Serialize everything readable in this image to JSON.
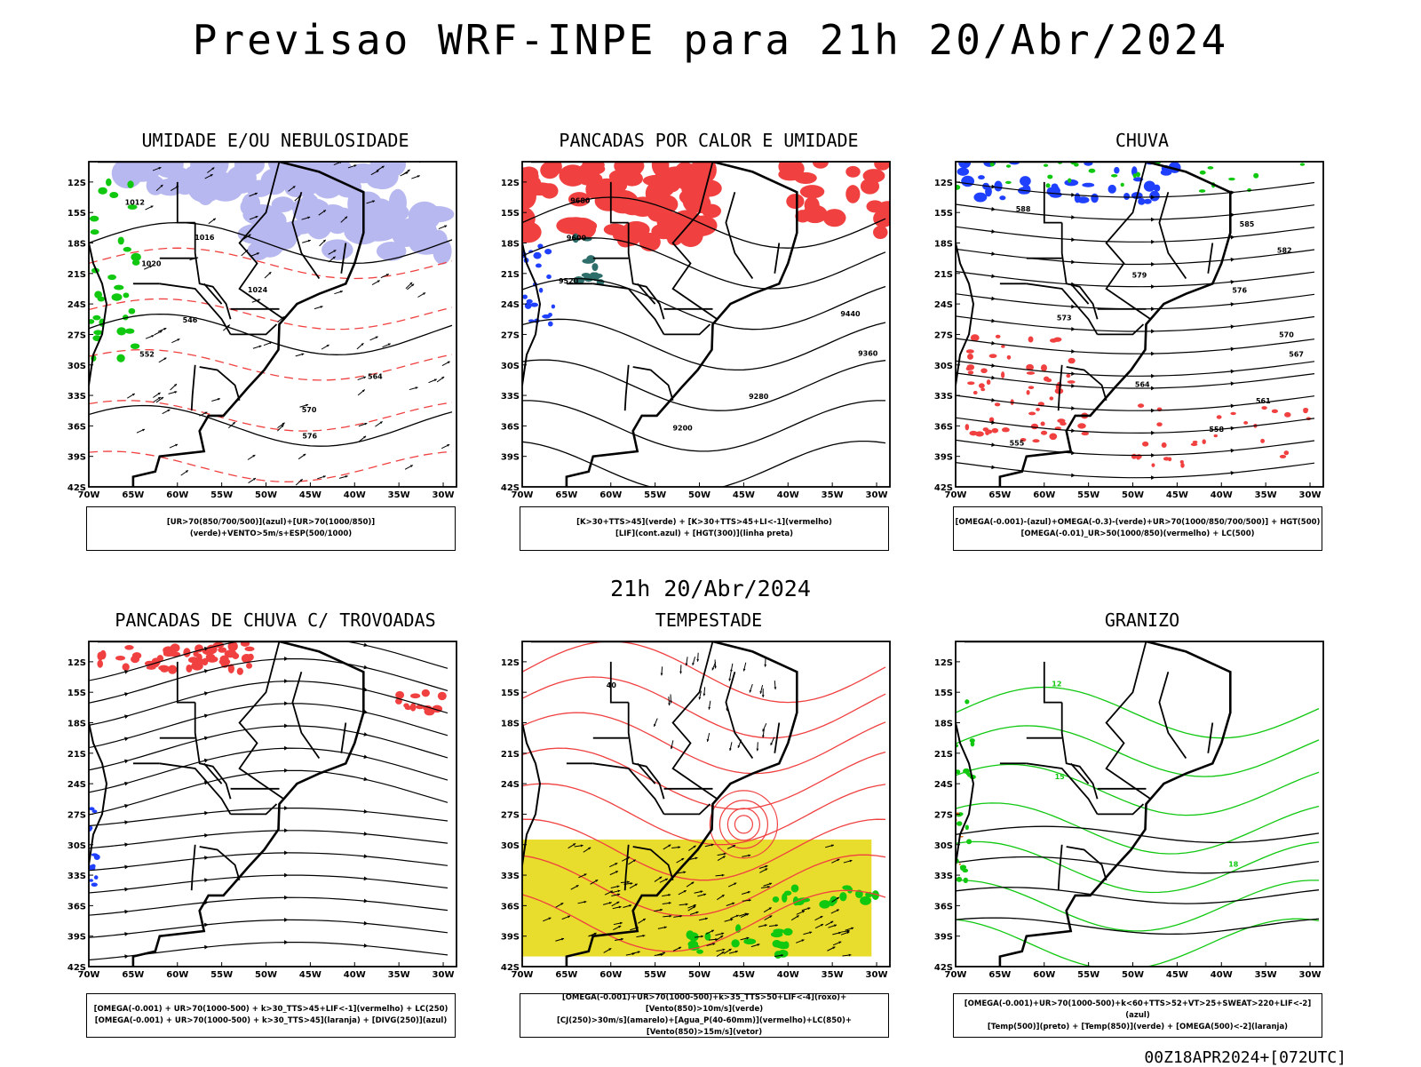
{
  "main_title": "Previsao WRF-INPE  para 21h 20/Abr/2024",
  "row_date": "21h 20/Abr/2024",
  "footer": "00Z18APR2024+[072UTC]",
  "colors": {
    "coast": "#000000",
    "red_fill": "#f04040",
    "green": "#10c810",
    "blue": "#2040ff",
    "lavender": "#b8b8f0",
    "yellow": "#e8dc2c",
    "teal": "#2e6e6a",
    "orange": "#e07010"
  },
  "chart_data": [
    {
      "type": "heatmap",
      "title": "UMIDADE E/OU NEBULOSIDADE",
      "lon_ticks": [
        "70W",
        "65W",
        "60W",
        "55W",
        "50W",
        "45W",
        "40W",
        "35W",
        "30W"
      ],
      "lat_ticks": [
        "12S",
        "15S",
        "18S",
        "21S",
        "24S",
        "27S",
        "30S",
        "33S",
        "36S",
        "39S",
        "42S"
      ],
      "xlim": [
        -70,
        -28.5
      ],
      "ylim": [
        -42,
        -10
      ],
      "contour_labels": [
        "1012",
        "1016",
        "1020",
        "1024",
        "546",
        "552",
        "564",
        "570",
        "576"
      ],
      "legend": [
        "[UR>70(850/700/500)](azul)+[UR>70(1000/850)](verde)+VENTO>5m/s+ESP(500/1000)"
      ]
    },
    {
      "type": "heatmap",
      "title": "PANCADAS POR CALOR E UMIDADE",
      "lon_ticks": [
        "70W",
        "65W",
        "60W",
        "55W",
        "50W",
        "45W",
        "40W",
        "35W",
        "30W"
      ],
      "lat_ticks": [
        "12S",
        "15S",
        "18S",
        "21S",
        "24S",
        "27S",
        "30S",
        "33S",
        "36S",
        "39S",
        "42S"
      ],
      "xlim": [
        -70,
        -28.5
      ],
      "ylim": [
        -42,
        -10
      ],
      "contour_labels": [
        "9680",
        "9600",
        "9520",
        "9440",
        "9360",
        "9280",
        "9200"
      ],
      "legend": [
        "[K>30+TTS>45](verde)  +  [K>30+TTS>45+LI<-1](vermelho)",
        "[LIF](cont.azul)  +  [HGT(300)](linha preta)"
      ]
    },
    {
      "type": "heatmap",
      "title": "CHUVA",
      "lon_ticks": [
        "70W",
        "65W",
        "60W",
        "55W",
        "50W",
        "45W",
        "40W",
        "35W",
        "30W"
      ],
      "lat_ticks": [
        "12S",
        "15S",
        "18S",
        "21S",
        "24S",
        "27S",
        "30S",
        "33S",
        "36S",
        "39S",
        "42S"
      ],
      "xlim": [
        -70,
        -28.5
      ],
      "ylim": [
        -42,
        -10
      ],
      "contour_labels": [
        "588",
        "585",
        "582",
        "579",
        "576",
        "573",
        "570",
        "567",
        "564",
        "561",
        "558",
        "555"
      ],
      "legend": [
        "[OMEGA(-0.001)-(azul)+OMEGA(-0.3)-(verde)+UR>70(1000/850/700/500)]  +  HGT(500)",
        "[OMEGA(-0.01)_UR>50(1000/850)(vermelho)  +  LC(500)"
      ]
    },
    {
      "type": "heatmap",
      "title": "PANCADAS DE CHUVA C/ TROVOADAS",
      "lon_ticks": [
        "70W",
        "65W",
        "60W",
        "55W",
        "50W",
        "45W",
        "40W",
        "35W",
        "30W"
      ],
      "lat_ticks": [
        "12S",
        "15S",
        "18S",
        "21S",
        "24S",
        "27S",
        "30S",
        "33S",
        "36S",
        "39S",
        "42S"
      ],
      "xlim": [
        -70,
        -28.5
      ],
      "ylim": [
        -42,
        -10
      ],
      "contour_labels": [],
      "legend": [
        "[OMEGA(-0.001)  +  UR>70(1000-500)  +  k>30_TTS>45+LIF<-1](vermelho)  +  LC(250)",
        "[OMEGA(-0.001)  +  UR>70(1000-500)  +  k>30_TTS>45](laranja)  +  [DIVG(250)](azul)"
      ]
    },
    {
      "type": "heatmap",
      "title": "TEMPESTADE",
      "lon_ticks": [
        "70W",
        "65W",
        "60W",
        "55W",
        "50W",
        "45W",
        "40W",
        "35W",
        "30W"
      ],
      "lat_ticks": [
        "12S",
        "15S",
        "18S",
        "21S",
        "24S",
        "27S",
        "30S",
        "33S",
        "36S",
        "39S",
        "42S"
      ],
      "xlim": [
        -70,
        -28.5
      ],
      "ylim": [
        -42,
        -10
      ],
      "contour_labels": [
        "40"
      ],
      "legend": [
        "[OMEGA(-0.001)+UR>70(1000-500)+k>35_TTS>50+LIF<-4](roxo)+[Vento(850)>10m/s](verde)",
        "[CJ(250)>30m/s](amarelo)+[Agua_P(40-60mm)](vermelho)+LC(850)+[Vento(850)>15m/s](vetor)"
      ]
    },
    {
      "type": "heatmap",
      "title": "GRANIZO",
      "lon_ticks": [
        "70W",
        "65W",
        "60W",
        "55W",
        "50W",
        "45W",
        "40W",
        "35W",
        "30W"
      ],
      "lat_ticks": [
        "12S",
        "15S",
        "18S",
        "21S",
        "24S",
        "27S",
        "30S",
        "33S",
        "36S",
        "39S",
        "42S"
      ],
      "xlim": [
        -70,
        -28.5
      ],
      "ylim": [
        -42,
        -10
      ],
      "contour_labels": [
        "12",
        "15",
        "18"
      ],
      "legend": [
        "[OMEGA(-0.001)+UR>70(1000-500)+k<60+TTS>52+VT>25+SWEAT>220+LIF<-2](azul)",
        "[Temp(500)](preto)  +  [Temp(850)](verde)  +  [OMEGA(500)<-2](laranja)"
      ]
    }
  ]
}
